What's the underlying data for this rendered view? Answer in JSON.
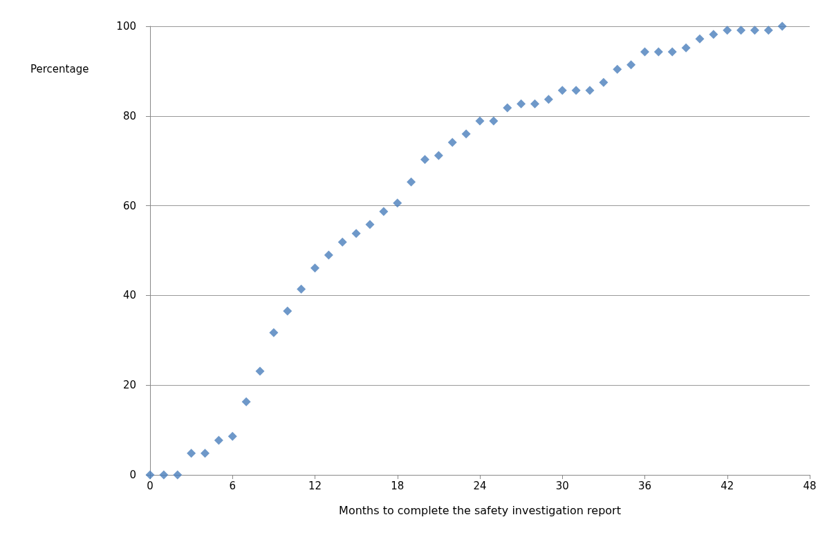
{
  "chart_data": {
    "type": "scatter",
    "xlabel": "Months to complete the safety investigation report",
    "ylabel": "Percentage",
    "x": [
      0,
      1,
      2,
      3,
      4,
      5,
      6,
      7,
      8,
      9,
      10,
      11,
      12,
      13,
      14,
      15,
      16,
      17,
      18,
      19,
      20,
      21,
      22,
      23,
      24,
      25,
      26,
      27,
      28,
      29,
      30,
      31,
      32,
      33,
      34,
      35,
      36,
      37,
      38,
      39,
      40,
      41,
      42,
      43,
      44,
      45,
      46
    ],
    "series": [
      {
        "color": "#4a7ebb",
        "values": [
          0,
          0,
          0,
          4.8,
          4.8,
          7.7,
          8.6,
          16.3,
          23.1,
          31.7,
          36.5,
          41.4,
          46.1,
          49.0,
          51.9,
          53.8,
          55.8,
          58.7,
          60.6,
          65.3,
          70.3,
          71.2,
          74.1,
          76.0,
          78.9,
          78.9,
          81.8,
          82.7,
          82.7,
          83.7,
          85.7,
          85.7,
          85.7,
          87.5,
          90.4,
          91.4,
          94.3,
          94.3,
          94.3,
          95.2,
          97.2,
          98.2,
          99.1,
          99.1,
          99.1,
          99.1,
          100
        ]
      }
    ],
    "xlim": [
      0,
      48
    ],
    "xticks": [
      0,
      6,
      12,
      18,
      24,
      30,
      36,
      42,
      48
    ],
    "ylim": [
      0,
      100
    ],
    "yticks": [
      0,
      20,
      40,
      60,
      80,
      100
    ],
    "grid": "y",
    "marker": "diamond"
  }
}
